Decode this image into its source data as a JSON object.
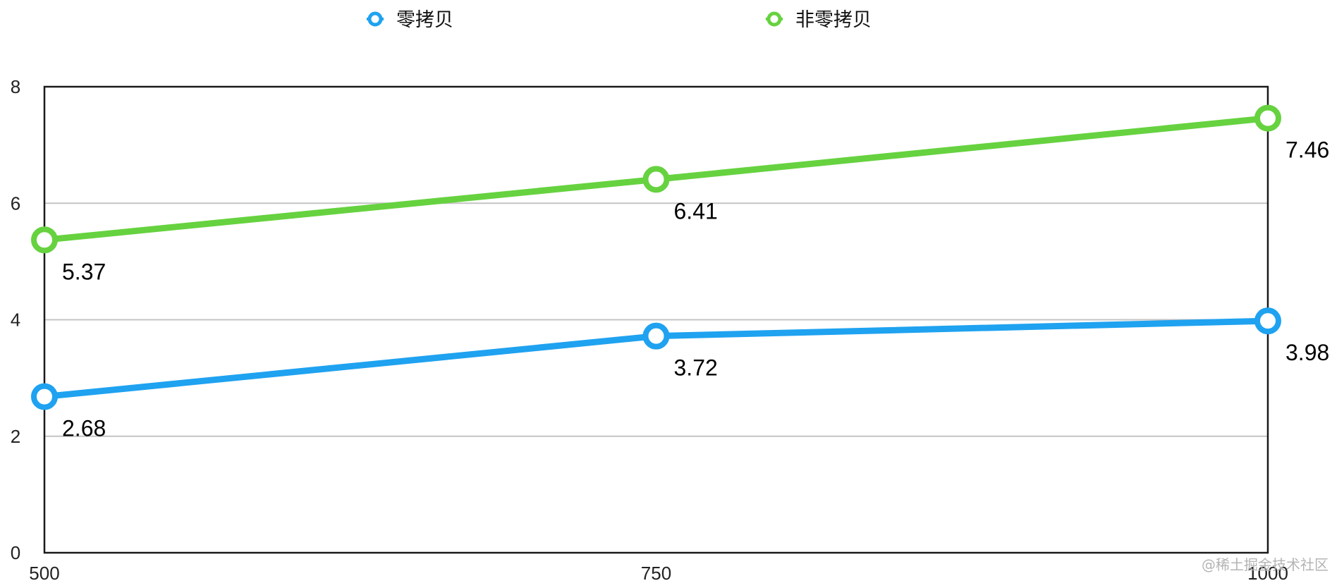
{
  "chart_data": {
    "type": "line",
    "title": "",
    "xlabel": "",
    "ylabel": "",
    "categories": [
      "500",
      "750",
      "1000"
    ],
    "ylim": [
      0,
      8
    ],
    "yticks": [
      0,
      2,
      4,
      6,
      8
    ],
    "grid": true,
    "legend_position": "top",
    "series": [
      {
        "name": "零拷贝",
        "values": [
          2.68,
          3.72,
          3.98
        ],
        "color": "#1fa2f0"
      },
      {
        "name": "非零拷贝",
        "values": [
          5.37,
          6.41,
          7.46
        ],
        "color": "#66d23f"
      }
    ],
    "data_labels": {
      "零拷贝": [
        "2.68",
        "3.72",
        "3.98"
      ],
      "非零拷贝": [
        "5.37",
        "6.41",
        "7.46"
      ]
    }
  },
  "watermark": "@稀土掘金技术社区"
}
